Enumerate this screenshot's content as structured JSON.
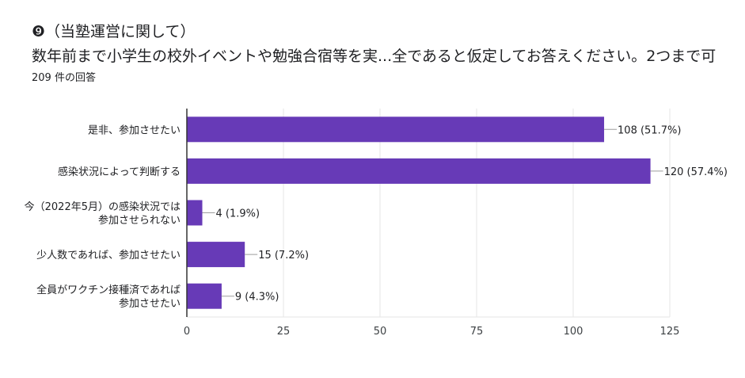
{
  "question": {
    "title": "❾（当塾運営に関して）",
    "subtitle": "数年前まで小学生の校外イベントや勉強合宿等を実...全であると仮定してお答えください。2つまで可",
    "response_count": "209 件の回答"
  },
  "colors": {
    "bar": "#673ab7",
    "grid": "#e6e6e6",
    "axis": "#333333"
  },
  "chart_data": {
    "type": "bar",
    "orientation": "horizontal",
    "categories": [
      [
        "是非、参加させたい"
      ],
      [
        "感染状況によって判断する"
      ],
      [
        "今（2022年5月）の感染状況では",
        "参加させられない"
      ],
      [
        "少人数であれば、参加させたい"
      ],
      [
        "全員がワクチン接種済であれば",
        "参加させたい"
      ]
    ],
    "values": [
      108,
      120,
      4,
      15,
      9
    ],
    "data_labels": [
      "108 (51.7%)",
      "120 (57.4%)",
      "4 (1.9%)",
      "15 (7.2%)",
      "9 (4.3%)"
    ],
    "xlim": [
      0,
      125
    ],
    "xticks": [
      0,
      25,
      50,
      75,
      100,
      125
    ],
    "grid": true
  }
}
